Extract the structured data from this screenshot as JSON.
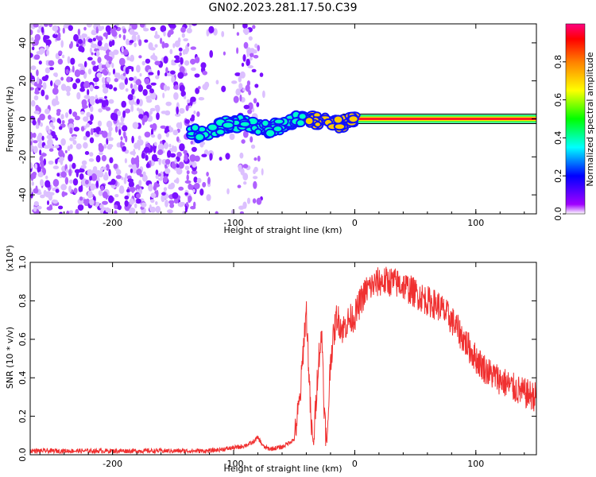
{
  "title": "GN02.2023.281.17.50.C39",
  "chart_data": [
    {
      "type": "heatmap",
      "xlabel": "Height of straight line (km)",
      "ylabel": "Frequency (Hz)",
      "xlim": [
        -268,
        150
      ],
      "ylim": [
        -50,
        50
      ],
      "xticks": [
        -200,
        -100,
        0,
        100
      ],
      "yticks": [
        -40,
        -20,
        0,
        20,
        40
      ],
      "colorbar": {
        "label": "Normalized spectral amplitude",
        "range": [
          0,
          1
        ],
        "ticks": [
          "0.0",
          "0.2",
          "0.4",
          "0.6",
          "0.8"
        ],
        "colors": [
          "#ffffff",
          "#a000ff",
          "#0000ff",
          "#00ffff",
          "#00ff00",
          "#ffff00",
          "#ff8000",
          "#ff0000",
          "#ff0080"
        ]
      },
      "features": {
        "noise_region_x": [
          -268,
          -75
        ],
        "signal_track_x": [
          -135,
          150
        ],
        "signal_track_freq": [
          -12,
          2
        ],
        "peak_region_x": [
          0,
          150
        ],
        "peak_freq": 0
      }
    },
    {
      "type": "line",
      "xlabel": "Height of straight line (km)",
      "ylabel": "SNR (10 * v/v)",
      "yscale_label": "(x10⁴)",
      "xlim": [
        -268,
        150
      ],
      "ylim": [
        0,
        1.0
      ],
      "xticks": [
        -200,
        -100,
        0,
        100
      ],
      "yticks": [
        "0.0",
        "0.2",
        "0.4",
        "0.6",
        "0.8",
        "1.0"
      ],
      "line_color": "#f03030",
      "series": [
        {
          "name": "",
          "x": [
            -268,
            -200,
            -120,
            -95,
            -85,
            -80,
            -75,
            -70,
            -60,
            -50,
            -45,
            -42,
            -40,
            -38,
            -36,
            -34,
            -30,
            -27,
            -25,
            -23,
            -20,
            -15,
            -10,
            -5,
            0,
            5,
            10,
            15,
            20,
            30,
            40,
            50,
            60,
            70,
            80,
            90,
            100,
            110,
            120,
            130,
            140,
            150
          ],
          "y": [
            0.02,
            0.02,
            0.02,
            0.04,
            0.06,
            0.09,
            0.04,
            0.03,
            0.04,
            0.08,
            0.3,
            0.6,
            0.75,
            0.45,
            0.15,
            0.05,
            0.5,
            0.62,
            0.2,
            0.05,
            0.5,
            0.72,
            0.65,
            0.7,
            0.72,
            0.8,
            0.86,
            0.88,
            0.9,
            0.9,
            0.88,
            0.84,
            0.8,
            0.77,
            0.7,
            0.6,
            0.5,
            0.43,
            0.39,
            0.35,
            0.32,
            0.3
          ]
        }
      ]
    }
  ]
}
